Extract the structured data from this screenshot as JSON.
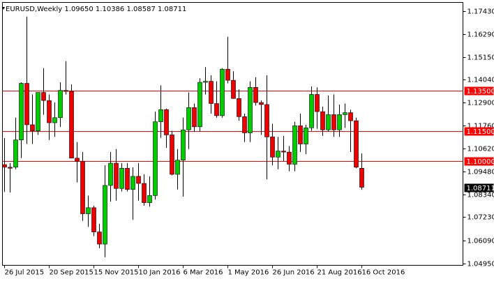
{
  "chart_data": {
    "type": "candlestick",
    "title": "EURUSD,Weekly  1.09650 1.10386 1.08587 1.08711",
    "categories": [
      "26 Jul 2015",
      null,
      null,
      null,
      null,
      null,
      null,
      null,
      "20 Sep 2015",
      null,
      null,
      null,
      null,
      null,
      null,
      null,
      "15 Nov 2015",
      null,
      null,
      null,
      null,
      null,
      null,
      null,
      "10 Jan 2016",
      null,
      null,
      null,
      null,
      null,
      null,
      null,
      "6 Mar 2016",
      null,
      null,
      null,
      null,
      null,
      null,
      null,
      "1 May 2016",
      null,
      null,
      null,
      null,
      null,
      null,
      null,
      "26 Jun 2016",
      null,
      null,
      null,
      null,
      null,
      null,
      null,
      "21 Aug 2016",
      null,
      null,
      null,
      null,
      null,
      null,
      null,
      "16 Oct 2016"
    ],
    "open": [
      1.0983,
      1.097,
      1.097,
      1.1105,
      1.1385,
      1.118,
      1.115,
      1.134,
      1.13,
      1.119,
      1.1215,
      1.135,
      1.1345,
      1.1015,
      1.1,
      1.074,
      1.077,
      1.065,
      1.059,
      1.088,
      1.099,
      1.0865,
      1.0965,
      1.086,
      1.0925,
      1.089,
      1.0795,
      1.083,
      1.1195,
      1.1255,
      1.113,
      1.0935,
      1.1005,
      1.1155,
      1.1265,
      1.117,
      1.139,
      1.1395,
      1.1285,
      1.1225,
      1.1455,
      1.14,
      1.131,
      1.122,
      1.114,
      1.1365,
      1.129,
      1.128,
      1.112,
      1.102,
      1.105,
      1.1045,
      1.0985,
      1.1175,
      1.1085,
      1.1165,
      1.133,
      1.1245,
      1.1155,
      1.123,
      1.1155,
      1.123,
      1.124,
      1.12,
      1.0965
    ],
    "high": [
      1.1114,
      1.099,
      1.1215,
      1.139,
      1.1715,
      1.133,
      1.133,
      1.146,
      1.133,
      1.129,
      1.139,
      1.1495,
      1.138,
      1.1095,
      1.1045,
      1.083,
      1.078,
      1.069,
      1.098,
      1.1045,
      1.106,
      1.099,
      1.099,
      1.097,
      1.099,
      1.0935,
      1.0925,
      1.1245,
      1.1375,
      1.126,
      1.115,
      1.106,
      1.1215,
      1.134,
      1.1285,
      1.141,
      1.1465,
      1.1425,
      1.1395,
      1.146,
      1.1615,
      1.1445,
      1.1355,
      1.1235,
      1.1395,
      1.1415,
      1.13,
      1.1425,
      1.1185,
      1.112,
      1.1125,
      1.1075,
      1.1195,
      1.1235,
      1.118,
      1.137,
      1.1365,
      1.127,
      1.1325,
      1.133,
      1.128,
      1.1285,
      1.1255,
      1.1215,
      1.10386
    ],
    "low": [
      1.0848,
      1.0845,
      1.096,
      1.1015,
      1.1085,
      1.1085,
      1.113,
      1.123,
      1.1105,
      1.112,
      1.117,
      1.133,
      1.1015,
      1.0895,
      1.0705,
      1.0675,
      1.063,
      1.057,
      1.0525,
      1.08,
      1.0805,
      1.085,
      1.085,
      1.071,
      1.0805,
      1.078,
      1.0775,
      1.081,
      1.1115,
      1.1065,
      1.093,
      1.086,
      1.0825,
      1.106,
      1.1145,
      1.1145,
      1.133,
      1.1235,
      1.1215,
      1.1215,
      1.1385,
      1.132,
      1.12,
      1.1095,
      1.1095,
      1.1275,
      1.113,
      1.091,
      1.098,
      1.096,
      1.1,
      1.095,
      1.095,
      1.1045,
      1.1035,
      1.115,
      1.116,
      1.1125,
      1.1145,
      1.112,
      1.112,
      1.1165,
      1.1045,
      1.0965,
      1.08587
    ],
    "close": [
      1.097,
      1.0965,
      1.1105,
      1.1385,
      1.118,
      1.115,
      1.134,
      1.13,
      1.119,
      1.1215,
      1.135,
      1.1345,
      1.1015,
      1.1,
      1.074,
      1.077,
      1.065,
      1.059,
      1.088,
      1.099,
      1.0865,
      1.0965,
      1.086,
      1.0925,
      1.089,
      1.0795,
      1.083,
      1.1195,
      1.1255,
      1.113,
      1.0935,
      1.1005,
      1.1155,
      1.1265,
      1.117,
      1.139,
      1.1395,
      1.1285,
      1.1225,
      1.1455,
      1.14,
      1.131,
      1.122,
      1.114,
      1.1365,
      1.129,
      1.128,
      1.112,
      1.102,
      1.105,
      1.1045,
      1.0985,
      1.1175,
      1.1085,
      1.1165,
      1.133,
      1.1245,
      1.1155,
      1.123,
      1.1155,
      1.123,
      1.124,
      1.12,
      1.097,
      1.08711
    ],
    "up_color": "#00cc00",
    "down_color": "#ee0000",
    "ylim": [
      1.0485,
      1.1785
    ],
    "yticks": [
      {
        "value": 1.1743,
        "label": "1.17430"
      },
      {
        "value": 1.1629,
        "label": "1.16290"
      },
      {
        "value": 1.1515,
        "label": "1.15150"
      },
      {
        "value": 1.1404,
        "label": "1.14040"
      },
      {
        "value": 1.129,
        "label": "1.12900"
      },
      {
        "value": 1.1176,
        "label": "1.11760"
      },
      {
        "value": 1.1062,
        "label": "1.10620"
      },
      {
        "value": 1.0948,
        "label": "1.09480"
      },
      {
        "value": 1.0834,
        "label": "1.08340"
      },
      {
        "value": 1.0723,
        "label": "1.07230"
      },
      {
        "value": 1.0609,
        "label": "1.06090"
      },
      {
        "value": 1.0495,
        "label": "1.04950"
      }
    ],
    "levels": [
      {
        "value": 1.135,
        "label": "1.13500"
      },
      {
        "value": 1.115,
        "label": "1.11500"
      },
      {
        "value": 1.1,
        "label": "1.10000"
      }
    ],
    "level_color": "#ff0000",
    "last_price_label": "1.08711"
  }
}
